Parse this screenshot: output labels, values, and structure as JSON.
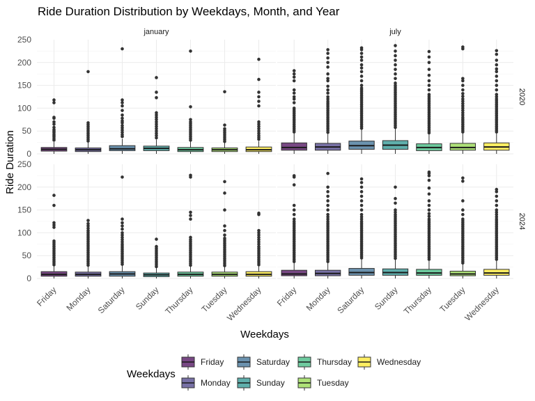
{
  "chart_data": {
    "type": "box",
    "title": "Ride Duration Distribution by Weekdays, Month, and Year",
    "xlabel": "Weekdays",
    "ylabel": "Ride Duration",
    "ylim": [
      0,
      250
    ],
    "yticks": [
      0,
      50,
      100,
      150,
      200,
      250
    ],
    "grid": true,
    "legend_position": "bottom",
    "legend_title": "Weekdays",
    "categories": [
      "Friday",
      "Monday",
      "Saturday",
      "Sunday",
      "Thursday",
      "Tuesday",
      "Wednesday"
    ],
    "colors": [
      "#440154",
      "#443A83",
      "#31688E",
      "#21908C",
      "#35B779",
      "#8FD744",
      "#FDE725"
    ],
    "facet_columns": [
      "january",
      "july"
    ],
    "facet_rows": [
      "2020",
      "2024"
    ],
    "panels": [
      {
        "month": "january",
        "year": "2020",
        "boxes": [
          {
            "weekday": "Friday",
            "min": 0,
            "q1": 6,
            "median": 10,
            "q3": 14,
            "whisker_high": 26,
            "outliers": [
              30,
              33,
              37,
              40,
              43,
              47,
              50,
              53,
              58,
              65,
              70,
              78,
              80,
              112,
              118
            ]
          },
          {
            "weekday": "Monday",
            "min": 0,
            "q1": 5,
            "median": 9,
            "q3": 13,
            "whisker_high": 25,
            "outliers": [
              28,
              32,
              36,
              40,
              44,
              48,
              52,
              56,
              60,
              64,
              68,
              180
            ]
          },
          {
            "weekday": "Saturday",
            "min": 0,
            "q1": 7,
            "median": 11,
            "q3": 18,
            "whisker_high": 33,
            "outliers": [
              38,
              42,
              47,
              52,
              57,
              62,
              68,
              72,
              78,
              85,
              95,
              105,
              112,
              118,
              230
            ]
          },
          {
            "weekday": "Sunday",
            "min": 0,
            "q1": 7,
            "median": 12,
            "q3": 17,
            "whisker_high": 31,
            "outliers": [
              35,
              40,
              45,
              50,
              55,
              60,
              65,
              70,
              75,
              80,
              85,
              90,
              123,
              135,
              167
            ]
          },
          {
            "weekday": "Thursday",
            "min": 0,
            "q1": 5,
            "median": 9,
            "q3": 14,
            "whisker_high": 27,
            "outliers": [
              30,
              34,
              38,
              42,
              46,
              50,
              54,
              58,
              62,
              66,
              70,
              75,
              103,
              225
            ]
          },
          {
            "weekday": "Tuesday",
            "min": 0,
            "q1": 5,
            "median": 9,
            "q3": 13,
            "whisker_high": 24,
            "outliers": [
              27,
              31,
              35,
              39,
              43,
              47,
              51,
              55,
              63,
              136
            ]
          },
          {
            "weekday": "Wednesday",
            "min": 0,
            "q1": 5,
            "median": 9,
            "q3": 15,
            "whisker_high": 28,
            "outliers": [
              32,
              36,
              40,
              45,
              50,
              55,
              60,
              65,
              70,
              105,
              115,
              125,
              135,
              163,
              207
            ]
          }
        ]
      },
      {
        "month": "july",
        "year": "2020",
        "boxes": [
          {
            "weekday": "Friday",
            "min": 0,
            "q1": 8,
            "median": 14,
            "q3": 24,
            "whisker_high": 46,
            "outliers": [
              48,
              52,
              56,
              60,
              64,
              68,
              72,
              76,
              80,
              84,
              88,
              92,
              96,
              100,
              112,
              120,
              125,
              133,
              140,
              160,
              168,
              175,
              182
            ]
          },
          {
            "weekday": "Monday",
            "min": 0,
            "q1": 8,
            "median": 15,
            "q3": 23,
            "whisker_high": 45,
            "outliers": [
              47,
              51,
              55,
              59,
              63,
              67,
              71,
              75,
              79,
              83,
              87,
              91,
              95,
              99,
              103,
              107,
              111,
              115,
              120,
              125,
              133,
              140,
              148,
              160,
              165,
              175,
              190,
              200,
              210,
              220,
              228
            ]
          },
          {
            "weekday": "Saturday",
            "min": 0,
            "q1": 10,
            "median": 18,
            "q3": 28,
            "whisker_high": 54,
            "outliers": [
              56,
              60,
              64,
              68,
              72,
              76,
              80,
              84,
              88,
              92,
              96,
              100,
              104,
              108,
              112,
              116,
              120,
              124,
              128,
              132,
              136,
              140,
              144,
              150,
              160,
              170,
              180,
              188,
              195,
              205,
              212,
              220,
              228,
              232
            ]
          },
          {
            "weekday": "Sunday",
            "min": 0,
            "q1": 10,
            "median": 19,
            "q3": 29,
            "whisker_high": 56,
            "outliers": [
              58,
              62,
              66,
              70,
              74,
              78,
              82,
              86,
              90,
              94,
              98,
              102,
              106,
              110,
              114,
              118,
              122,
              126,
              130,
              134,
              138,
              142,
              146,
              150,
              155,
              165,
              175,
              185,
              195,
              205,
              215,
              225,
              237
            ]
          },
          {
            "weekday": "Thursday",
            "min": 0,
            "q1": 7,
            "median": 14,
            "q3": 22,
            "whisker_high": 44,
            "outliers": [
              46,
              50,
              54,
              58,
              62,
              66,
              70,
              74,
              78,
              82,
              86,
              90,
              94,
              98,
              102,
              106,
              110,
              114,
              118,
              122,
              126,
              130,
              140,
              150,
              160,
              172,
              185,
              200,
              212,
              224
            ]
          },
          {
            "weekday": "Tuesday",
            "min": 0,
            "q1": 8,
            "median": 14,
            "q3": 23,
            "whisker_high": 45,
            "outliers": [
              48,
              52,
              56,
              60,
              64,
              68,
              72,
              76,
              80,
              85,
              90,
              95,
              100,
              105,
              110,
              115,
              120,
              126,
              132,
              140,
              150,
              160,
              165,
              230,
              234
            ]
          },
          {
            "weekday": "Wednesday",
            "min": 0,
            "q1": 8,
            "median": 15,
            "q3": 24,
            "whisker_high": 46,
            "outliers": [
              48,
              52,
              56,
              60,
              64,
              68,
              72,
              76,
              80,
              84,
              88,
              92,
              96,
              100,
              104,
              108,
              112,
              116,
              120,
              125,
              130,
              140,
              150,
              160,
              170,
              180,
              186,
              195,
              205,
              218,
              226
            ]
          }
        ]
      },
      {
        "month": "january",
        "year": "2024",
        "boxes": [
          {
            "weekday": "Friday",
            "min": 0,
            "q1": 5,
            "median": 9,
            "q3": 15,
            "whisker_high": 28,
            "outliers": [
              30,
              34,
              38,
              42,
              46,
              50,
              54,
              58,
              62,
              66,
              70,
              74,
              78,
              82,
              112,
              117,
              122,
              160,
              182
            ]
          },
          {
            "weekday": "Monday",
            "min": 0,
            "q1": 5,
            "median": 9,
            "q3": 14,
            "whisker_high": 27,
            "outliers": [
              29,
              33,
              37,
              41,
              45,
              49,
              53,
              57,
              61,
              65,
              69,
              73,
              77,
              81,
              85,
              89,
              93,
              97,
              101,
              105,
              110,
              115,
              120,
              127
            ]
          },
          {
            "weekday": "Saturday",
            "min": 0,
            "q1": 5,
            "median": 10,
            "q3": 15,
            "whisker_high": 29,
            "outliers": [
              31,
              35,
              39,
              43,
              47,
              51,
              55,
              59,
              63,
              67,
              71,
              75,
              80,
              85,
              90,
              95,
              100,
              108,
              115,
              122,
              130,
              222
            ]
          },
          {
            "weekday": "Sunday",
            "min": 0,
            "q1": 4,
            "median": 8,
            "q3": 12,
            "whisker_high": 23,
            "outliers": [
              26,
              30,
              34,
              38,
              42,
              46,
              50,
              54,
              58,
              62,
              66,
              70,
              86
            ]
          },
          {
            "weekday": "Thursday",
            "min": 0,
            "q1": 5,
            "median": 9,
            "q3": 14,
            "whisker_high": 27,
            "outliers": [
              29,
              33,
              37,
              41,
              45,
              49,
              53,
              57,
              61,
              65,
              69,
              73,
              77,
              81,
              85,
              90,
              130,
              138,
              145,
              222,
              226
            ]
          },
          {
            "weekday": "Tuesday",
            "min": 0,
            "q1": 5,
            "median": 9,
            "q3": 14,
            "whisker_high": 26,
            "outliers": [
              28,
              32,
              36,
              40,
              44,
              48,
              52,
              56,
              60,
              64,
              68,
              72,
              76,
              80,
              84,
              88,
              95,
              105,
              115,
              150,
              187,
              212
            ]
          },
          {
            "weekday": "Wednesday",
            "min": 0,
            "q1": 5,
            "median": 9,
            "q3": 15,
            "whisker_high": 28,
            "outliers": [
              30,
              34,
              38,
              42,
              46,
              50,
              54,
              58,
              62,
              66,
              70,
              75,
              80,
              85,
              90,
              95,
              100,
              105,
              140,
              143
            ]
          }
        ]
      },
      {
        "month": "july",
        "year": "2024",
        "boxes": [
          {
            "weekday": "Friday",
            "min": 0,
            "q1": 6,
            "median": 10,
            "q3": 18,
            "whisker_high": 35,
            "outliers": [
              37,
              41,
              45,
              49,
              53,
              57,
              61,
              65,
              69,
              73,
              77,
              81,
              85,
              89,
              93,
              97,
              101,
              105,
              109,
              113,
              117,
              121,
              125,
              130,
              140,
              150,
              160,
              205,
              222,
              225
            ]
          },
          {
            "weekday": "Monday",
            "min": 0,
            "q1": 6,
            "median": 11,
            "q3": 18,
            "whisker_high": 35,
            "outliers": [
              37,
              41,
              45,
              49,
              53,
              57,
              61,
              65,
              69,
              73,
              77,
              81,
              85,
              89,
              93,
              97,
              101,
              105,
              109,
              113,
              117,
              121,
              125,
              130,
              135,
              140,
              150,
              160,
              170,
              180,
              190,
              200,
              230
            ]
          },
          {
            "weekday": "Saturday",
            "min": 0,
            "q1": 7,
            "median": 13,
            "q3": 22,
            "whisker_high": 43,
            "outliers": [
              45,
              49,
              53,
              57,
              61,
              65,
              69,
              73,
              77,
              81,
              85,
              89,
              93,
              97,
              101,
              105,
              109,
              113,
              117,
              121,
              125,
              130,
              135,
              140,
              150,
              160,
              170,
              180,
              190,
              200,
              210,
              218
            ]
          },
          {
            "weekday": "Sunday",
            "min": 0,
            "q1": 7,
            "median": 13,
            "q3": 21,
            "whisker_high": 42,
            "outliers": [
              44,
              48,
              52,
              56,
              60,
              64,
              68,
              72,
              76,
              80,
              84,
              88,
              92,
              96,
              100,
              104,
              108,
              112,
              116,
              120,
              124,
              128,
              132,
              136,
              140,
              145,
              150,
              165,
              175,
              200
            ]
          },
          {
            "weekday": "Thursday",
            "min": 0,
            "q1": 7,
            "median": 12,
            "q3": 20,
            "whisker_high": 40,
            "outliers": [
              42,
              46,
              50,
              54,
              58,
              62,
              66,
              70,
              74,
              78,
              82,
              86,
              90,
              94,
              98,
              102,
              106,
              110,
              114,
              118,
              122,
              126,
              130,
              136,
              142,
              150,
              160,
              170,
              185,
              198,
              215,
              225,
              230,
              233
            ]
          },
          {
            "weekday": "Tuesday",
            "min": 0,
            "q1": 6,
            "median": 10,
            "q3": 16,
            "whisker_high": 32,
            "outliers": [
              34,
              38,
              42,
              46,
              50,
              54,
              58,
              62,
              66,
              70,
              74,
              78,
              82,
              86,
              90,
              94,
              98,
              102,
              106,
              110,
              114,
              118,
              122,
              126,
              130,
              140,
              150,
              170,
              213,
              220
            ]
          },
          {
            "weekday": "Wednesday",
            "min": 0,
            "q1": 7,
            "median": 12,
            "q3": 20,
            "whisker_high": 40,
            "outliers": [
              42,
              46,
              50,
              54,
              58,
              62,
              66,
              70,
              74,
              78,
              82,
              86,
              90,
              94,
              98,
              102,
              106,
              110,
              114,
              118,
              122,
              126,
              130,
              135,
              140,
              145,
              150,
              160,
              170,
              180,
              190,
              195
            ]
          }
        ]
      }
    ]
  }
}
